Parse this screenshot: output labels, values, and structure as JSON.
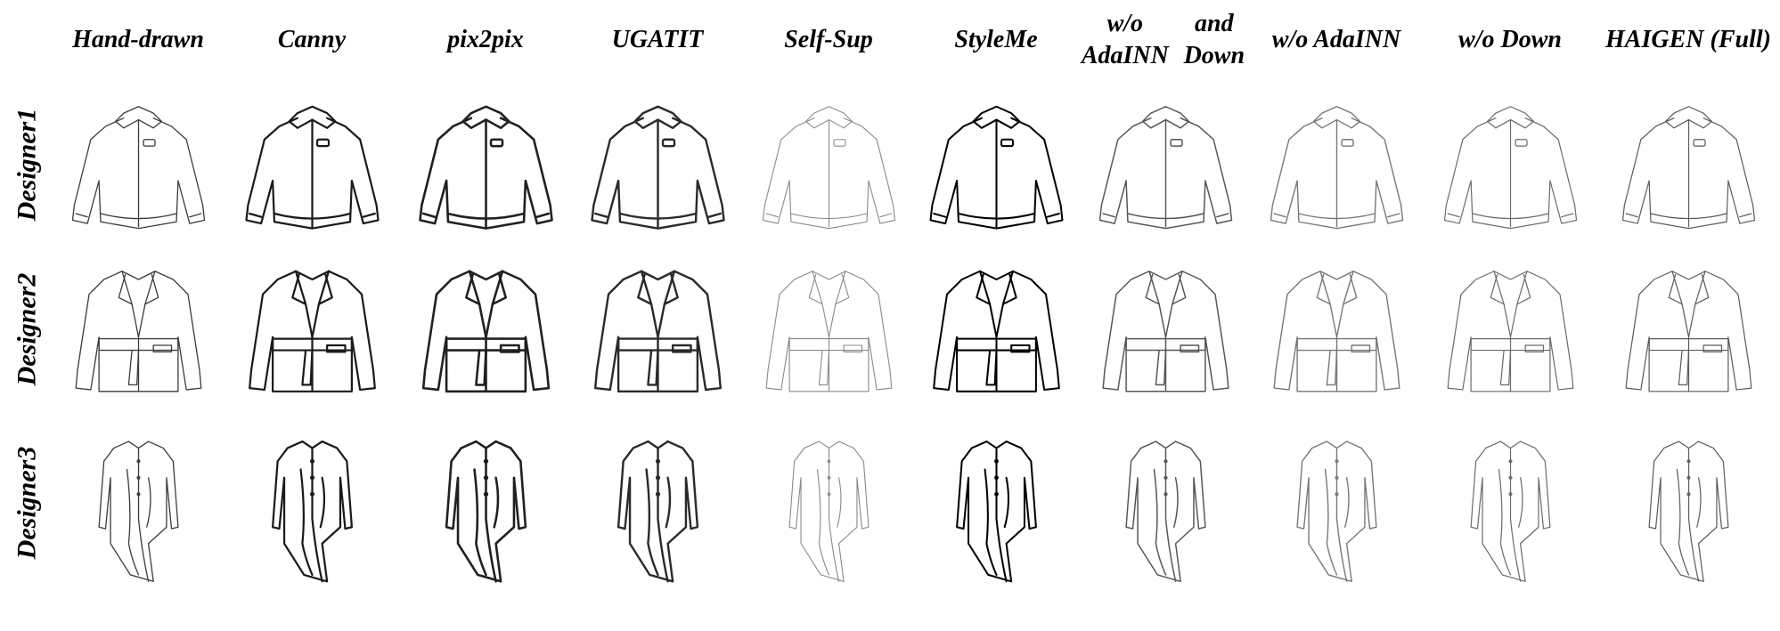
{
  "figure": {
    "columns": [
      "Hand-drawn",
      "Canny",
      "pix2pix",
      "UGATIT",
      "Self-Sup",
      "StyleMe",
      "w/o AdaINN\nand Down",
      "w/o AdaINN",
      "w/o Down",
      "HAIGEN (Full)"
    ],
    "rows": [
      "Designer1",
      "Designer2",
      "Designer3"
    ],
    "garments": [
      "bomber-jacket",
      "belted-blazer",
      "asymmetric-draped-shirt"
    ],
    "ink_colors": [
      "#3a3a3a",
      "#1a1a1a",
      "#202020",
      "#2a2a2a",
      "#8a8a8a",
      "#000000",
      "#555555",
      "#777777",
      "#6a6a6a",
      "#5a5a5a"
    ]
  }
}
